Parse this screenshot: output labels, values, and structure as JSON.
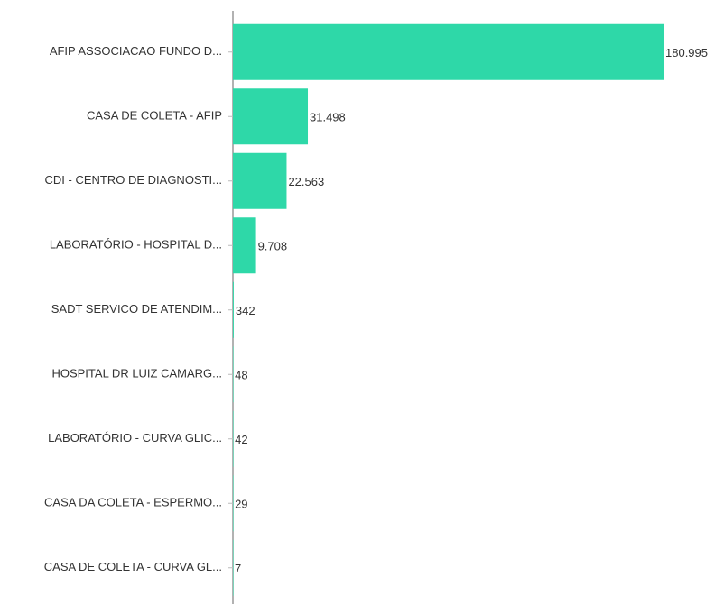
{
  "chart_data": {
    "type": "bar",
    "orientation": "horizontal",
    "categories": [
      "AFIP ASSOCIACAO FUNDO D...",
      "CASA DE COLETA - AFIP",
      "CDI - CENTRO DE DIAGNOSTI...",
      "LABORATÓRIO - HOSPITAL D...",
      "SADT SERVICO DE ATENDIM...",
      "HOSPITAL DR LUIZ CAMARG...",
      "LABORATÓRIO - CURVA GLIC...",
      "CASA DA COLETA - ESPERMO...",
      "CASA DE COLETA - CURVA GL..."
    ],
    "values": [
      180995,
      31498,
      22563,
      9708,
      342,
      48,
      42,
      29,
      7
    ],
    "value_labels": [
      "180.995",
      "31.498",
      "22.563",
      "9.708",
      "342",
      "48",
      "42",
      "29",
      "7"
    ],
    "color": "#2ed8a8"
  }
}
